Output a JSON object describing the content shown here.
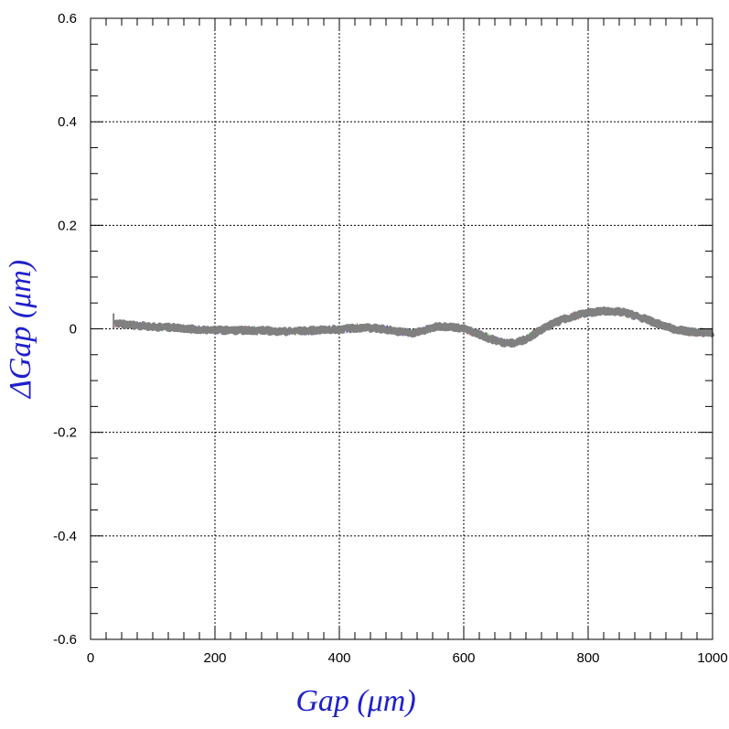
{
  "chart_data": {
    "type": "line",
    "title": "",
    "xlabel": "Gap  (μm)",
    "ylabel": "ΔGap  (μm)",
    "xlim": [
      0,
      1000
    ],
    "ylim": [
      -0.6,
      0.6
    ],
    "xticks": [
      0,
      200,
      400,
      600,
      800,
      1000
    ],
    "yticks": [
      -0.6,
      -0.4,
      -0.2,
      0,
      0.2,
      0.4,
      0.6
    ],
    "xtick_labels": [
      "0",
      "200",
      "400",
      "600",
      "800",
      "1000"
    ],
    "ytick_labels": [
      "-0.6",
      "-0.4",
      "-0.2",
      "0",
      "0.2",
      "0.4",
      "0.6"
    ],
    "grid": true,
    "label_color": "#2020cc",
    "series": [
      {
        "color": "#808080",
        "x": [
          40,
          60,
          80,
          100,
          120,
          140,
          160,
          180,
          200,
          220,
          240,
          260,
          280,
          300,
          320,
          340,
          360,
          380,
          400,
          420,
          440,
          460,
          480,
          500,
          520,
          540,
          560,
          580,
          600,
          620,
          640,
          660,
          680,
          700,
          720,
          740,
          760,
          780,
          800,
          820,
          840,
          860,
          880,
          900,
          920,
          940,
          960,
          980,
          1000
        ],
        "y": [
          0.01,
          0.008,
          0.006,
          0.004,
          0.003,
          0.002,
          0.0,
          -0.002,
          -0.002,
          -0.003,
          -0.003,
          -0.003,
          -0.003,
          -0.005,
          -0.005,
          -0.004,
          -0.003,
          -0.002,
          -0.001,
          0.001,
          0.002,
          0.001,
          -0.002,
          -0.006,
          -0.008,
          -0.002,
          0.005,
          0.004,
          0.0,
          -0.008,
          -0.018,
          -0.026,
          -0.028,
          -0.02,
          -0.005,
          0.008,
          0.018,
          0.026,
          0.031,
          0.034,
          0.034,
          0.031,
          0.024,
          0.015,
          0.006,
          -0.001,
          -0.005,
          -0.007,
          -0.008
        ]
      }
    ],
    "noise_colors": [
      "#cc2222",
      "#22aa22",
      "#2222cc"
    ]
  }
}
